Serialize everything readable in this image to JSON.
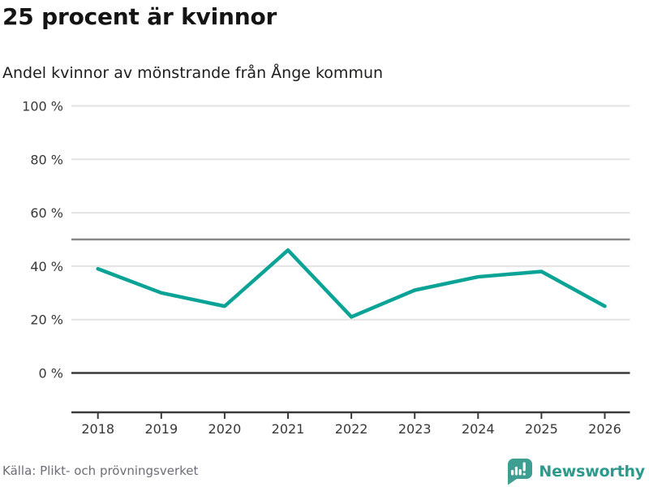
{
  "header": {
    "title": "25 procent är kvinnor",
    "subtitle": "Andel kvinnor av mönstrande från Ånge kommun"
  },
  "chart_data": {
    "type": "line",
    "title": "25 procent är kvinnor",
    "subtitle": "Andel kvinnor av mönstrande från Ånge kommun",
    "categories": [
      "2018",
      "2019",
      "2020",
      "2021",
      "2022",
      "2023",
      "2024",
      "2025",
      "2026"
    ],
    "series": [
      {
        "name": "Andel kvinnor av mönstrande",
        "values": [
          39,
          30,
          25,
          46,
          21,
          31,
          36,
          38,
          25
        ]
      }
    ],
    "unit": "%",
    "ylim": [
      0,
      100
    ],
    "y_ticks": [
      {
        "value": 0,
        "label": "0 %"
      },
      {
        "value": 20,
        "label": "20 %"
      },
      {
        "value": 40,
        "label": "40 %"
      },
      {
        "value": 60,
        "label": "60 %"
      },
      {
        "value": 80,
        "label": "80 %"
      },
      {
        "value": 100,
        "label": "100 %"
      }
    ],
    "reference_line": 50,
    "grid": true,
    "legend": "none"
  },
  "footer": {
    "source": "Källa: Plikt- och prövningsverket",
    "brand": "Newsworthy"
  },
  "colors": {
    "accent": "#0aa396",
    "brand_teal": "#3f9e92",
    "brand_text": "#2e9a8c",
    "grid_light": "#e3e3e3",
    "reference_gray": "#87878a",
    "axis_dark": "#3a3a3a",
    "tick_text": "#383838",
    "title_text": "#141414",
    "muted_text": "#6d6d78"
  }
}
